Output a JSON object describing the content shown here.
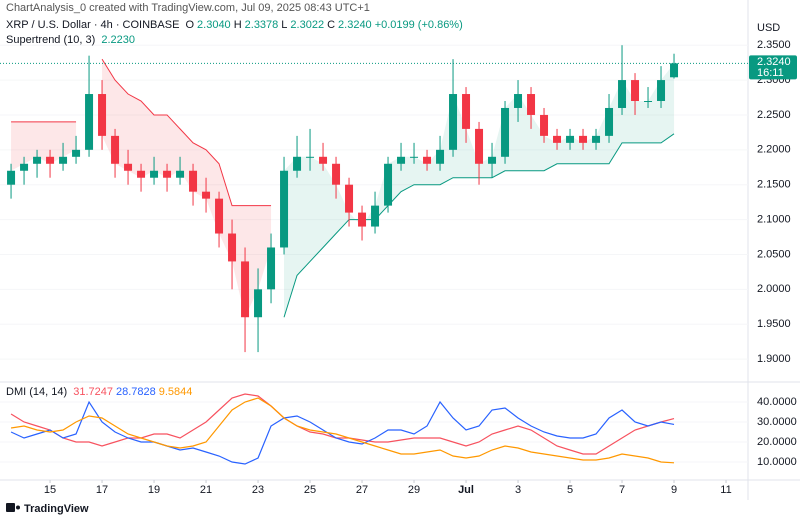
{
  "header": "ChartAnalysis_0 created with TradingView.com, Jul 09, 2025 08:43 UTC+1",
  "footer": "TradingView",
  "chart_data": [
    {
      "type": "candlestick",
      "title": "XRP / U.S. Dollar · 4h · COINBASE",
      "ohlc_legend": [
        {
          "label": "O",
          "value": "2.3040"
        },
        {
          "label": "H",
          "value": "2.3378"
        },
        {
          "label": "L",
          "value": "2.3022"
        },
        {
          "label": "C",
          "value": "2.3240"
        }
      ],
      "change": "+0.0199 (+0.86%)",
      "currency": "USD",
      "up_color": "#089981",
      "down_color": "#f23645",
      "open": [
        2.15,
        2.17,
        2.18,
        2.19,
        2.18,
        2.19,
        2.2,
        2.28,
        2.22,
        2.18,
        2.17,
        2.16,
        2.17,
        2.16,
        2.17,
        2.14,
        2.13,
        2.08,
        2.04,
        1.96,
        2.0,
        2.06,
        2.17,
        2.19,
        2.19,
        2.18,
        2.15,
        2.11,
        2.09,
        2.12,
        2.18,
        2.19,
        2.19,
        2.18,
        2.2,
        2.28,
        2.23,
        2.18,
        2.19,
        2.26,
        2.28,
        2.25,
        2.22,
        2.21,
        2.22,
        2.21,
        2.22,
        2.26,
        2.3,
        2.27,
        2.27,
        2.304
      ],
      "high": [
        2.18,
        2.19,
        2.2,
        2.2,
        2.21,
        2.22,
        2.335,
        2.3,
        2.23,
        2.2,
        2.18,
        2.19,
        2.18,
        2.19,
        2.18,
        2.16,
        2.14,
        2.1,
        2.06,
        2.03,
        2.08,
        2.19,
        2.22,
        2.23,
        2.21,
        2.19,
        2.16,
        2.12,
        2.14,
        2.19,
        2.21,
        2.21,
        2.2,
        2.22,
        2.33,
        2.29,
        2.24,
        2.21,
        2.27,
        2.3,
        2.29,
        2.26,
        2.23,
        2.23,
        2.23,
        2.23,
        2.28,
        2.35,
        2.31,
        2.29,
        2.32,
        2.3378
      ],
      "low": [
        2.13,
        2.15,
        2.16,
        2.16,
        2.17,
        2.18,
        2.19,
        2.2,
        2.16,
        2.15,
        2.14,
        2.15,
        2.14,
        2.15,
        2.12,
        2.11,
        2.06,
        2.0,
        1.91,
        1.91,
        1.98,
        2.05,
        2.16,
        2.17,
        2.17,
        2.13,
        2.09,
        2.07,
        2.08,
        2.11,
        2.17,
        2.18,
        2.17,
        2.17,
        2.19,
        2.21,
        2.15,
        2.16,
        2.18,
        2.24,
        2.23,
        2.21,
        2.2,
        2.2,
        2.2,
        2.2,
        2.21,
        2.25,
        2.25,
        2.26,
        2.26,
        2.3022
      ],
      "close": [
        2.17,
        2.18,
        2.19,
        2.18,
        2.19,
        2.2,
        2.28,
        2.22,
        2.18,
        2.17,
        2.16,
        2.17,
        2.16,
        2.17,
        2.14,
        2.13,
        2.08,
        2.04,
        1.96,
        2.0,
        2.06,
        2.17,
        2.19,
        2.19,
        2.18,
        2.15,
        2.11,
        2.09,
        2.12,
        2.18,
        2.19,
        2.19,
        2.18,
        2.2,
        2.28,
        2.23,
        2.18,
        2.19,
        2.26,
        2.28,
        2.25,
        2.22,
        2.21,
        2.22,
        2.21,
        2.22,
        2.26,
        2.3,
        2.27,
        2.27,
        2.3,
        2.324
      ],
      "ylim": [
        1.87,
        2.389
      ],
      "yticks": [
        {
          "value": 1.9,
          "label": "1.9000"
        },
        {
          "value": 1.95,
          "label": "1.9500"
        },
        {
          "value": 2.0,
          "label": "2.0000"
        },
        {
          "value": 2.05,
          "label": "2.0500"
        },
        {
          "value": 2.1,
          "label": "2.1000"
        },
        {
          "value": 2.15,
          "label": "2.1500"
        },
        {
          "value": 2.2,
          "label": "2.2000"
        },
        {
          "value": 2.25,
          "label": "2.2500"
        },
        {
          "value": 2.3,
          "label": "2.3000"
        },
        {
          "value": 2.35,
          "label": "2.3500"
        }
      ],
      "xlim": [
        -0.85,
        56.46
      ],
      "xticks": [
        {
          "value": 3,
          "label": "15"
        },
        {
          "value": 7,
          "label": "17"
        },
        {
          "value": 11,
          "label": "19"
        },
        {
          "value": 15,
          "label": "21"
        },
        {
          "value": 19,
          "label": "23"
        },
        {
          "value": 23,
          "label": "25"
        },
        {
          "value": 27,
          "label": "27"
        },
        {
          "value": 31,
          "label": "29"
        },
        {
          "value": 35,
          "label": "Jul"
        },
        {
          "value": 39,
          "label": "3"
        },
        {
          "value": 43,
          "label": "5"
        },
        {
          "value": 47,
          "label": "7"
        },
        {
          "value": 51,
          "label": "9"
        },
        {
          "value": 55,
          "label": "11"
        }
      ],
      "price_tag": {
        "value": "2.3240",
        "countdown": "16:11"
      },
      "supertrend": {
        "name": "Supertrend (10, 3)",
        "value_label": "2.2230",
        "upper_color": "#f23645",
        "lower_color": "#089981",
        "upper": [
          2.24,
          2.24,
          2.24,
          2.24,
          2.24,
          2.24,
          null,
          2.33,
          2.3,
          2.28,
          2.27,
          2.25,
          2.25,
          2.23,
          2.21,
          2.2,
          2.18,
          2.12,
          2.12,
          2.12,
          2.12,
          null,
          null,
          null,
          null,
          null,
          null,
          null,
          null,
          null,
          null,
          null,
          null,
          null,
          null,
          null,
          null,
          null,
          null,
          null,
          null,
          null,
          null,
          null,
          null,
          null,
          null,
          null,
          null,
          null,
          null,
          null
        ],
        "lower": [
          null,
          null,
          null,
          null,
          null,
          null,
          2.18,
          null,
          null,
          null,
          null,
          null,
          null,
          null,
          null,
          null,
          null,
          null,
          null,
          null,
          null,
          1.96,
          2.02,
          2.04,
          2.06,
          2.08,
          2.1,
          2.1,
          2.1,
          2.12,
          2.14,
          2.15,
          2.15,
          2.15,
          2.16,
          2.16,
          2.16,
          2.16,
          2.17,
          2.17,
          2.17,
          2.17,
          2.18,
          2.18,
          2.18,
          2.18,
          2.18,
          2.21,
          2.21,
          2.21,
          2.21,
          2.223
        ]
      }
    },
    {
      "type": "line",
      "title": "DMI (14, 14)",
      "ylim": [
        1,
        48.5
      ],
      "yticks": [
        {
          "value": 10,
          "label": "10.0000"
        },
        {
          "value": 20,
          "label": "20.0000"
        },
        {
          "value": 30,
          "label": "30.0000"
        },
        {
          "value": 40,
          "label": "40.0000"
        }
      ],
      "series": [
        {
          "color": "#f7525f",
          "value_label": "31.7247",
          "values": [
            34,
            30,
            28,
            26,
            22,
            20,
            20,
            18,
            20,
            22,
            22,
            24,
            24,
            22,
            26,
            30,
            36,
            42,
            44,
            43,
            38,
            32,
            28,
            25,
            24,
            22,
            22,
            21,
            20,
            20,
            21,
            22,
            22,
            22,
            20,
            18,
            20,
            24,
            26,
            28,
            26,
            22,
            18,
            16,
            14,
            14,
            18,
            22,
            26,
            28,
            30,
            31.7247
          ]
        },
        {
          "color": "#2962ff",
          "value_label": "28.7828",
          "values": [
            25,
            22,
            24,
            26,
            22,
            24,
            40,
            30,
            25,
            22,
            20,
            20,
            18,
            16,
            17,
            15,
            13,
            10,
            9,
            12,
            28,
            32,
            33,
            30,
            26,
            22,
            20,
            19,
            22,
            26,
            26,
            24,
            28,
            40,
            32,
            26,
            28,
            36,
            37,
            32,
            28,
            25,
            23,
            22,
            22,
            24,
            32,
            36,
            30,
            28,
            30,
            28.7828
          ]
        },
        {
          "color": "#ff9800",
          "value_label": "9.5844",
          "values": [
            27,
            28,
            26,
            25,
            26,
            30,
            33,
            32,
            28,
            24,
            22,
            20,
            18,
            17,
            18,
            20,
            28,
            36,
            40,
            42,
            38,
            32,
            28,
            26,
            25,
            24,
            22,
            20,
            18,
            16,
            14,
            14,
            15,
            16,
            13,
            12,
            13,
            16,
            18,
            17,
            15,
            14,
            13,
            12,
            11,
            11,
            12,
            14,
            13,
            12,
            10,
            9.5844
          ]
        }
      ]
    }
  ]
}
